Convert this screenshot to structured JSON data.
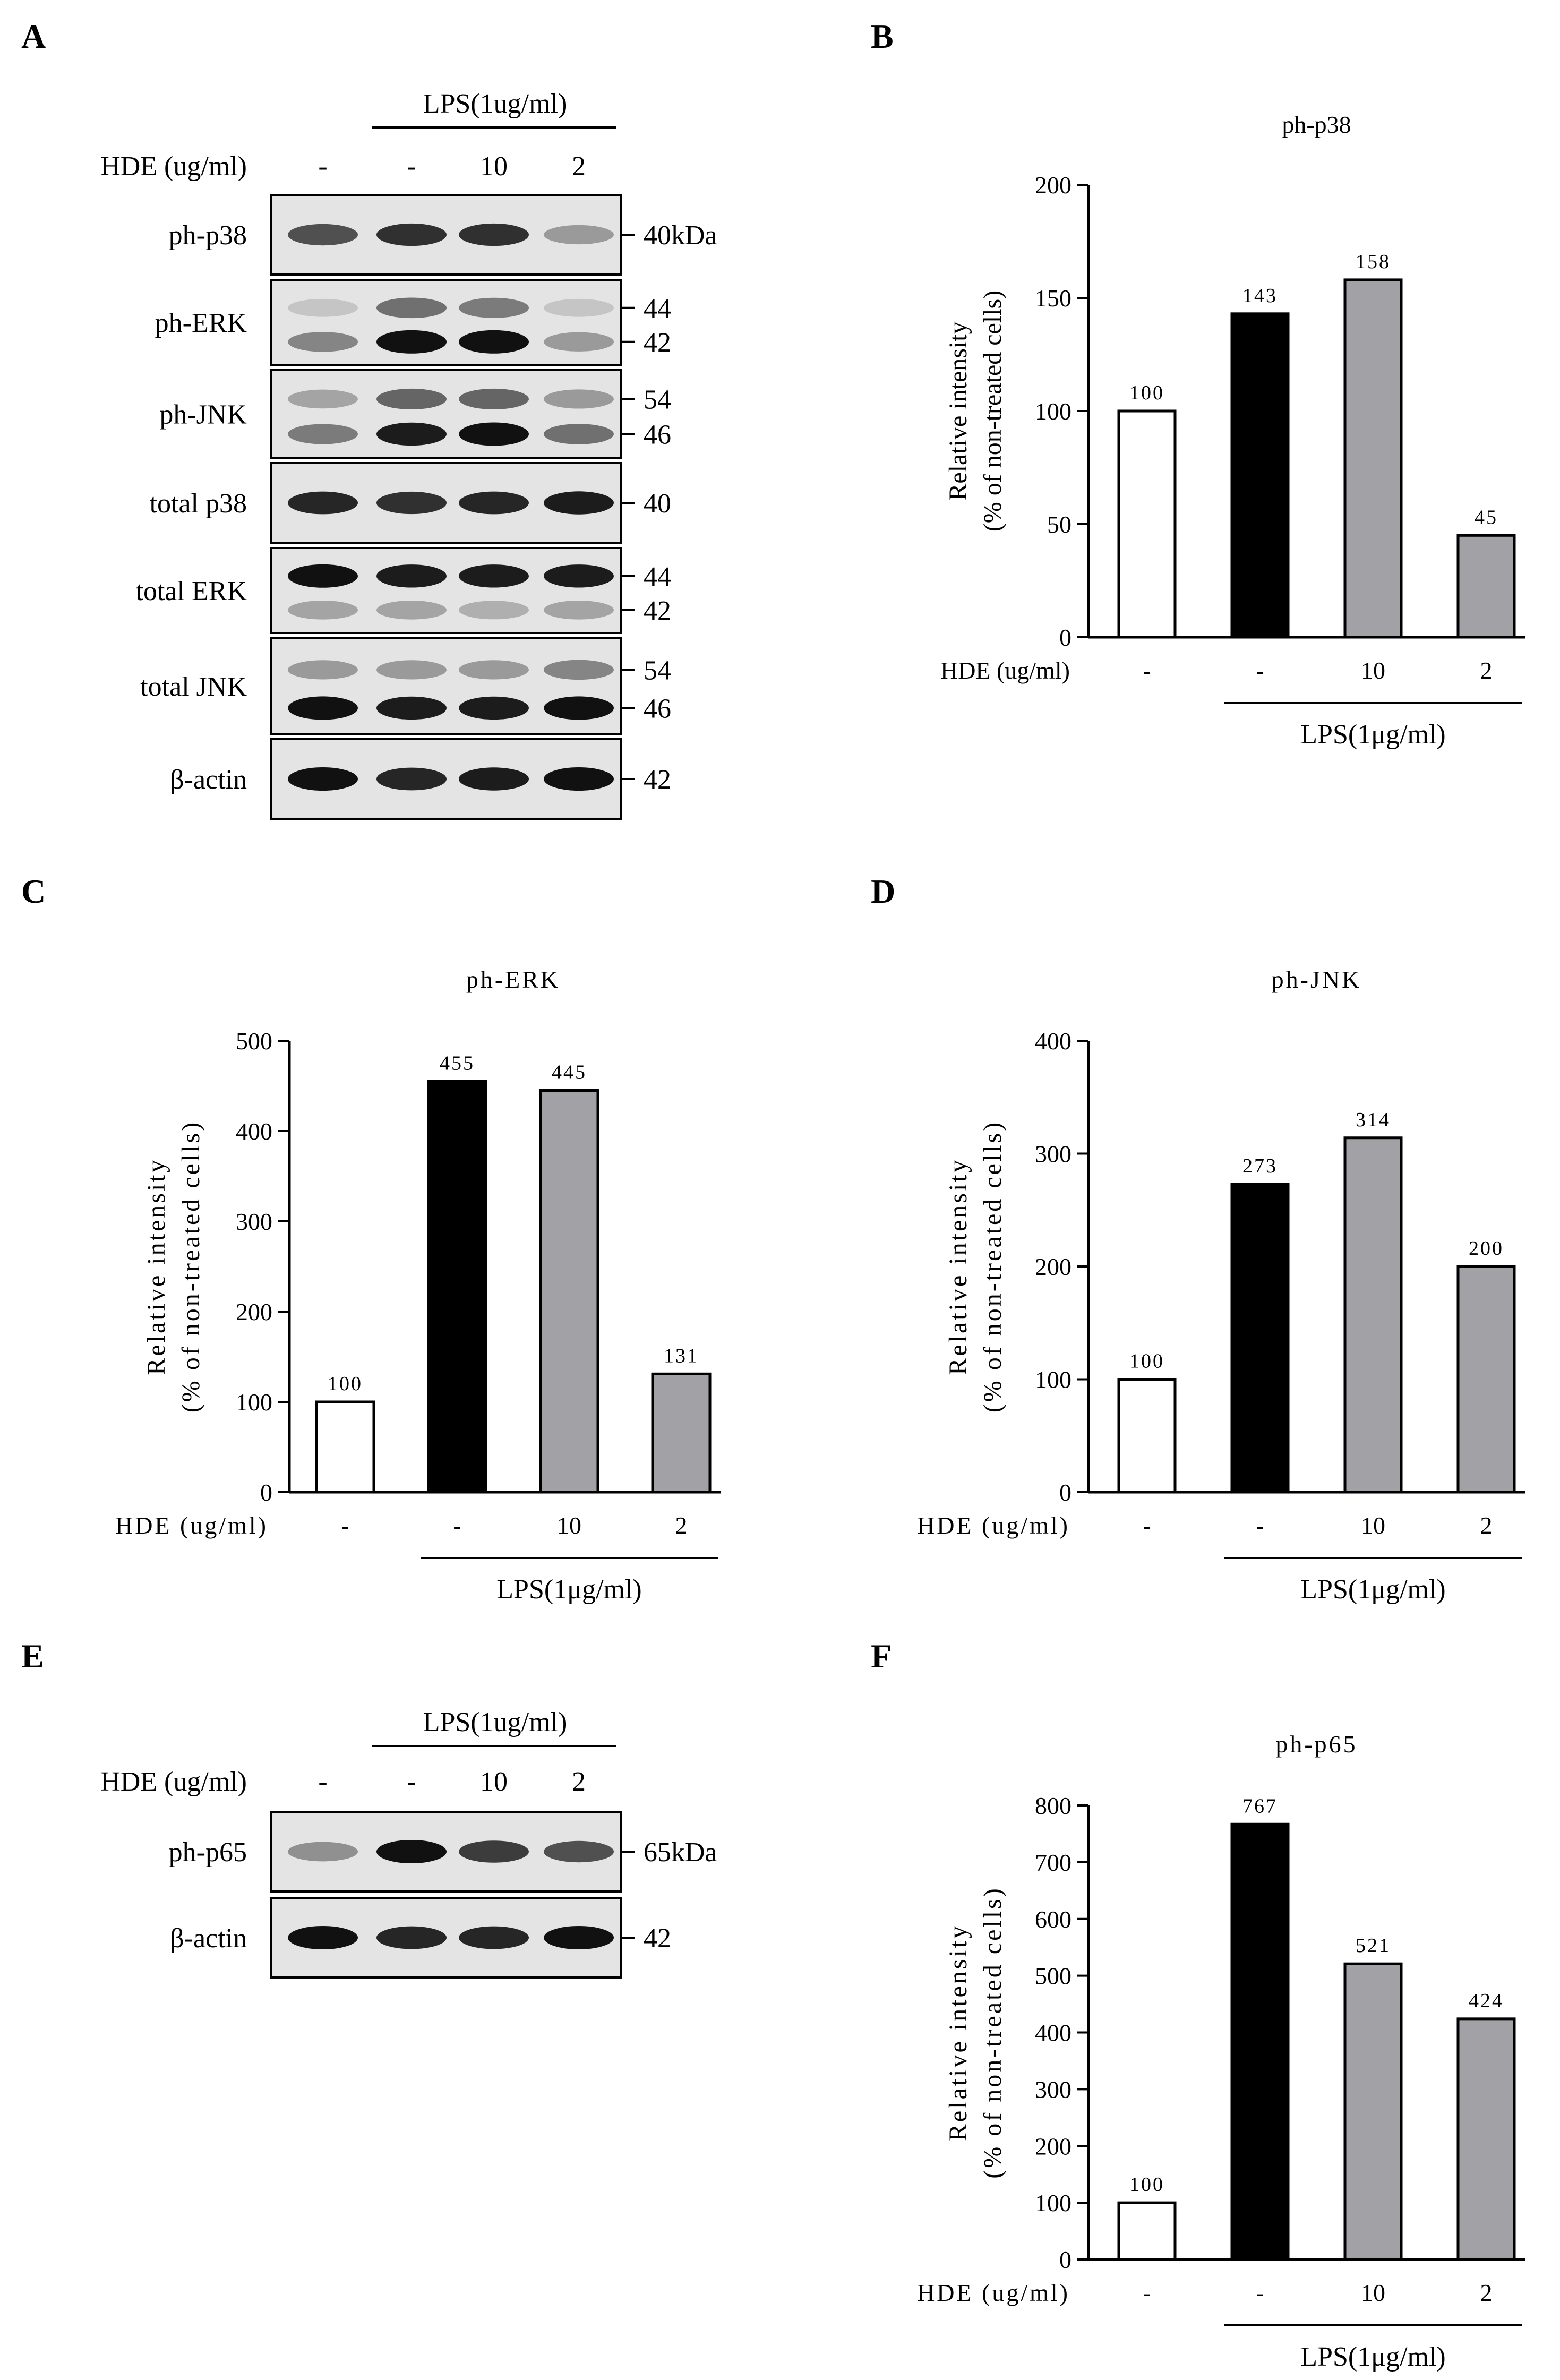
{
  "panel_labels": [
    "A",
    "B",
    "C",
    "D",
    "E",
    "F"
  ],
  "blot_A": {
    "treatment_label": "LPS(1ug/ml)",
    "hde_label": "HDE (ug/ml)",
    "lanes": [
      "-",
      "-",
      "10",
      "2"
    ],
    "rows": [
      {
        "name": "ph-p38",
        "markers": [
          "40kDa"
        ],
        "bands": [
          [
            0.7,
            0.85,
            0.85,
            0.35
          ]
        ]
      },
      {
        "name": "ph-ERK",
        "markers": [
          "44",
          "42"
        ],
        "bands": [
          [
            0.15,
            0.55,
            0.5,
            0.15
          ],
          [
            0.45,
            1.0,
            1.0,
            0.35
          ]
        ]
      },
      {
        "name": "ph-JNK",
        "markers": [
          "54",
          "46"
        ],
        "bands": [
          [
            0.3,
            0.6,
            0.6,
            0.35
          ],
          [
            0.5,
            0.95,
            1.0,
            0.55
          ]
        ]
      },
      {
        "name": "total p38",
        "markers": [
          "40"
        ],
        "bands": [
          [
            0.9,
            0.85,
            0.9,
            0.95
          ]
        ]
      },
      {
        "name": "total ERK",
        "markers": [
          "44",
          "42"
        ],
        "bands": [
          [
            1.0,
            0.95,
            0.95,
            0.95
          ],
          [
            0.3,
            0.3,
            0.25,
            0.3
          ]
        ]
      },
      {
        "name": "total JNK",
        "markers": [
          "54",
          "46"
        ],
        "bands": [
          [
            0.35,
            0.35,
            0.35,
            0.45
          ],
          [
            1.0,
            0.95,
            0.95,
            1.0
          ]
        ]
      },
      {
        "name": "β-actin",
        "markers": [
          "42"
        ],
        "bands": [
          [
            1.0,
            0.9,
            0.95,
            1.0
          ]
        ]
      }
    ]
  },
  "blot_E": {
    "treatment_label": "LPS(1ug/ml)",
    "hde_label": "HDE (ug/ml)",
    "lanes": [
      "-",
      "-",
      "10",
      "2"
    ],
    "rows": [
      {
        "name": "ph-p65",
        "markers": [
          "65kDa"
        ],
        "bands": [
          [
            0.4,
            1.0,
            0.8,
            0.7
          ]
        ]
      },
      {
        "name": "β-actin",
        "markers": [
          "42"
        ],
        "bands": [
          [
            1.0,
            0.9,
            0.9,
            1.0
          ]
        ]
      }
    ]
  },
  "colors": {
    "control": "#ffffff",
    "lps": "#000000",
    "hde": "#a2a2a6"
  },
  "chart_data": [
    {
      "panel": "B",
      "type": "bar",
      "title": "ph-p38",
      "ylabel_line1": "Relative intensity",
      "ylabel_line2": "(% of non-treated cells)",
      "xlabel": "HDE (ug/ml)",
      "categories": [
        "-",
        "-",
        "10",
        "2"
      ],
      "values": [
        100,
        143,
        158,
        45
      ],
      "data_labels": [
        "100",
        "143",
        "158",
        "45"
      ],
      "ylim": [
        0,
        200
      ],
      "yticks": [
        "0",
        "50",
        "100",
        "150",
        "200"
      ],
      "bracket_label": "LPS(1μg/ml)"
    },
    {
      "panel": "C",
      "type": "bar",
      "title": "ph-ERK",
      "ylabel_line1": "Relative intensity",
      "ylabel_line2": "(% of non-treated cells)",
      "xlabel": "HDE (ug/ml)",
      "categories": [
        "-",
        "-",
        "10",
        "2"
      ],
      "values": [
        100,
        455,
        445,
        131
      ],
      "data_labels": [
        "100",
        "455",
        "445",
        "131"
      ],
      "ylim": [
        0,
        500
      ],
      "yticks": [
        "0",
        "100",
        "200",
        "300",
        "400",
        "500"
      ],
      "bracket_label": "LPS(1μg/ml)"
    },
    {
      "panel": "D",
      "type": "bar",
      "title": "ph-JNK",
      "ylabel_line1": "Relative intensity",
      "ylabel_line2": "(% of non-treated cells)",
      "xlabel": "HDE (ug/ml)",
      "categories": [
        "-",
        "-",
        "10",
        "2"
      ],
      "values": [
        100,
        273,
        314,
        200
      ],
      "data_labels": [
        "100",
        "273",
        "314",
        "200"
      ],
      "ylim": [
        0,
        400
      ],
      "yticks": [
        "0",
        "100",
        "200",
        "300",
        "400"
      ],
      "bracket_label": "LPS(1μg/ml)"
    },
    {
      "panel": "F",
      "type": "bar",
      "title": "ph-p65",
      "ylabel_line1": "Relative intensity",
      "ylabel_line2": "(% of non-treated cells)",
      "xlabel": "HDE (ug/ml)",
      "categories": [
        "-",
        "-",
        "10",
        "2"
      ],
      "values": [
        100,
        767,
        521,
        424
      ],
      "data_labels": [
        "100",
        "767",
        "521",
        "424"
      ],
      "ylim": [
        0,
        800
      ],
      "yticks": [
        "0",
        "100",
        "200",
        "300",
        "400",
        "500",
        "600",
        "700",
        "800"
      ],
      "bracket_label": "LPS(1μg/ml)"
    }
  ]
}
